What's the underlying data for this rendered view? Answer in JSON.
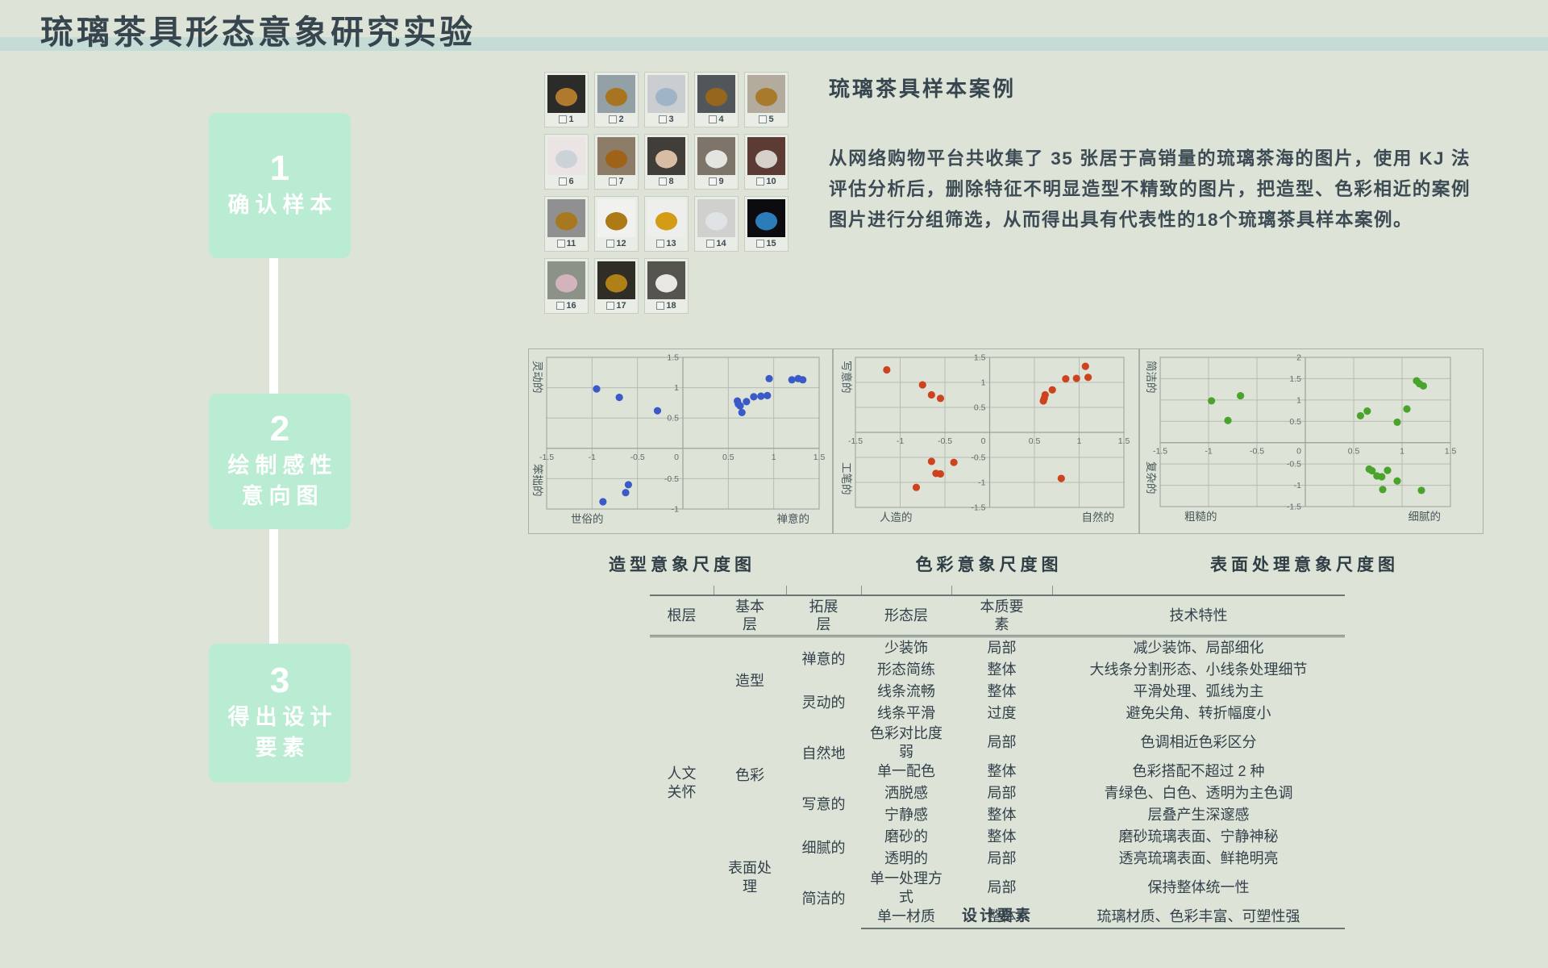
{
  "page": {
    "title": "琉璃茶具形态意象研究实验",
    "colors": {
      "background": "#dee3d8",
      "accent_bar": "#c5dbd6",
      "title_text": "#37464e",
      "step_box": "#b9ecd2",
      "step_text": "#ffffff",
      "body_text": "#3d4c54"
    }
  },
  "steps": [
    {
      "num": "1",
      "label": "确认样本"
    },
    {
      "num": "2",
      "label": "绘制感性\n意向图"
    },
    {
      "num": "3",
      "label": "得出设计\n要素"
    }
  ],
  "samples": {
    "heading": "琉璃茶具样本案例",
    "description": "从网络购物平台共收集了 35 张居于高销量的琉璃茶海的图片，使用 KJ 法评估分析后，删除特征不明显造型不精致的图片，把造型、色彩相近的案例图片进行分组筛选，从而得出具有代表性的18个琉璃茶具样本案例。",
    "thumbnails": [
      {
        "num": "1",
        "bg": "#2b2b29",
        "object": "#b07a2e"
      },
      {
        "num": "2",
        "bg": "#93a0a6",
        "object": "#a8741f"
      },
      {
        "num": "3",
        "bg": "#caced1",
        "object": "#9fb4c6"
      },
      {
        "num": "4",
        "bg": "#51565a",
        "object": "#96661e"
      },
      {
        "num": "5",
        "bg": "#b3ac9e",
        "object": "#a87a2c"
      },
      {
        "num": "6",
        "bg": "#eae4e4",
        "object": "#ccd2d8"
      },
      {
        "num": "7",
        "bg": "#8d7c68",
        "object": "#9e6218"
      },
      {
        "num": "8",
        "bg": "#413e3a",
        "object": "#d6bda4"
      },
      {
        "num": "9",
        "bg": "#7d756a",
        "object": "#e4e4e0"
      },
      {
        "num": "10",
        "bg": "#5d3b35",
        "object": "#d6d0ca"
      },
      {
        "num": "11",
        "bg": "#909090",
        "object": "#a87820"
      },
      {
        "num": "12",
        "bg": "#f1f1ef",
        "object": "#ac7a16"
      },
      {
        "num": "13",
        "bg": "#eeeeec",
        "object": "#d49c14"
      },
      {
        "num": "14",
        "bg": "#d0d0ce",
        "object": "#dfe3e5"
      },
      {
        "num": "15",
        "bg": "#0c0c10",
        "object": "#2c7cba"
      },
      {
        "num": "16",
        "bg": "#8b9389",
        "object": "#d4b4bc"
      },
      {
        "num": "17",
        "bg": "#302c26",
        "object": "#ae8018"
      },
      {
        "num": "18",
        "bg": "#56544f",
        "object": "#e9e7e3"
      }
    ]
  },
  "chart_data": [
    {
      "type": "scatter",
      "title": "造型意象尺度图",
      "point_color": "#3a5bc7",
      "xlim": [
        -1.5,
        1.5
      ],
      "ylim": [
        -1,
        1.5
      ],
      "tick_step": 0.5,
      "grid": true,
      "axis_labels": {
        "top": "灵动的",
        "bottom": "笨拙的",
        "left": "世俗的",
        "right": "禅意的"
      },
      "points": [
        [
          -0.95,
          0.98
        ],
        [
          -0.7,
          0.84
        ],
        [
          -0.28,
          0.62
        ],
        [
          0.6,
          0.78
        ],
        [
          0.61,
          0.73
        ],
        [
          0.63,
          0.7
        ],
        [
          0.65,
          0.59
        ],
        [
          0.7,
          0.77
        ],
        [
          0.78,
          0.85
        ],
        [
          0.86,
          0.86
        ],
        [
          0.93,
          0.87
        ],
        [
          0.95,
          1.15
        ],
        [
          1.2,
          1.13
        ],
        [
          1.27,
          1.15
        ],
        [
          1.32,
          1.13
        ],
        [
          -0.6,
          -0.6
        ],
        [
          -0.63,
          -0.73
        ],
        [
          -0.88,
          -0.88
        ]
      ]
    },
    {
      "type": "scatter",
      "title": "色彩意象尺度图",
      "point_color": "#cd431f",
      "xlim": [
        -1.5,
        1.5
      ],
      "ylim": [
        -1.5,
        1.5
      ],
      "tick_step": 0.5,
      "grid": true,
      "axis_labels": {
        "top": "写意的",
        "bottom": "工笔的",
        "left": "人造的",
        "right": "自然的"
      },
      "points": [
        [
          -1.15,
          1.25
        ],
        [
          -0.75,
          0.95
        ],
        [
          -0.65,
          0.75
        ],
        [
          -0.55,
          0.68
        ],
        [
          0.6,
          0.63
        ],
        [
          0.61,
          0.68
        ],
        [
          0.62,
          0.75
        ],
        [
          0.7,
          0.85
        ],
        [
          0.85,
          1.07
        ],
        [
          0.97,
          1.08
        ],
        [
          1.07,
          1.32
        ],
        [
          1.1,
          1.1
        ],
        [
          -0.65,
          -0.58
        ],
        [
          -0.4,
          -0.6
        ],
        [
          -0.6,
          -0.82
        ],
        [
          -0.55,
          -0.83
        ],
        [
          -0.82,
          -1.1
        ],
        [
          0.8,
          -0.92
        ]
      ]
    },
    {
      "type": "scatter",
      "title": "表面处理意象尺度图",
      "point_color": "#4aa42c",
      "xlim": [
        -1.5,
        1.5
      ],
      "ylim": [
        -1.5,
        2
      ],
      "tick_step": 0.5,
      "grid": true,
      "axis_labels": {
        "top": "简洁的",
        "bottom": "复杂的",
        "left": "粗糙的",
        "right": "细腻的"
      },
      "points": [
        [
          -0.97,
          0.98
        ],
        [
          -0.67,
          1.1
        ],
        [
          -0.8,
          0.52
        ],
        [
          0.57,
          0.63
        ],
        [
          0.64,
          0.74
        ],
        [
          0.95,
          0.48
        ],
        [
          1.05,
          0.79
        ],
        [
          1.15,
          1.45
        ],
        [
          1.18,
          1.38
        ],
        [
          1.22,
          1.33
        ],
        [
          0.66,
          -0.62
        ],
        [
          0.69,
          -0.66
        ],
        [
          0.74,
          -0.78
        ],
        [
          0.79,
          -0.8
        ],
        [
          0.85,
          -0.65
        ],
        [
          0.95,
          -0.9
        ],
        [
          0.8,
          -1.1
        ],
        [
          1.2,
          -1.12
        ]
      ]
    }
  ],
  "table": {
    "headers": [
      "根层",
      "基本\n层",
      "拓展\n层",
      "形态层",
      "本质要\n素",
      "技术特性"
    ],
    "root_label": "人文\n关怀",
    "groups": [
      {
        "basic": "造型",
        "subs": [
          {
            "ext": "禅意的",
            "rows": [
              [
                "少装饰",
                "局部",
                "减少装饰、局部细化"
              ],
              [
                "形态简练",
                "整体",
                "大线条分割形态、小线条处理细节"
              ]
            ]
          },
          {
            "ext": "灵动的",
            "rows": [
              [
                "线条流畅",
                "整体",
                "平滑处理、弧线为主"
              ],
              [
                "线条平滑",
                "过度",
                "避免尖角、转折幅度小"
              ]
            ]
          }
        ]
      },
      {
        "basic": "色彩",
        "subs": [
          {
            "ext": "自然地",
            "rows": [
              [
                "色彩对比度弱",
                "局部",
                "色调相近色彩区分"
              ],
              [
                "单一配色",
                "整体",
                "色彩搭配不超过 2 种"
              ]
            ]
          },
          {
            "ext": "写意的",
            "rows": [
              [
                "洒脱感",
                "局部",
                "青绿色、白色、透明为主色调"
              ],
              [
                "宁静感",
                "整体",
                "层叠产生深邃感"
              ]
            ]
          }
        ]
      },
      {
        "basic": "表面处\n理",
        "subs": [
          {
            "ext": "细腻的",
            "rows": [
              [
                "磨砂的",
                "整体",
                "磨砂琉璃表面、宁静神秘"
              ],
              [
                "透明的",
                "局部",
                "透亮琉璃表面、鲜艳明亮"
              ]
            ]
          },
          {
            "ext": "简洁的",
            "rows": [
              [
                "单一处理方式",
                "局部",
                "保持整体统一性"
              ],
              [
                "单一材质",
                "整体",
                "琉璃材质、色彩丰富、可塑性强"
              ]
            ]
          }
        ]
      }
    ],
    "caption": "设计要素"
  }
}
